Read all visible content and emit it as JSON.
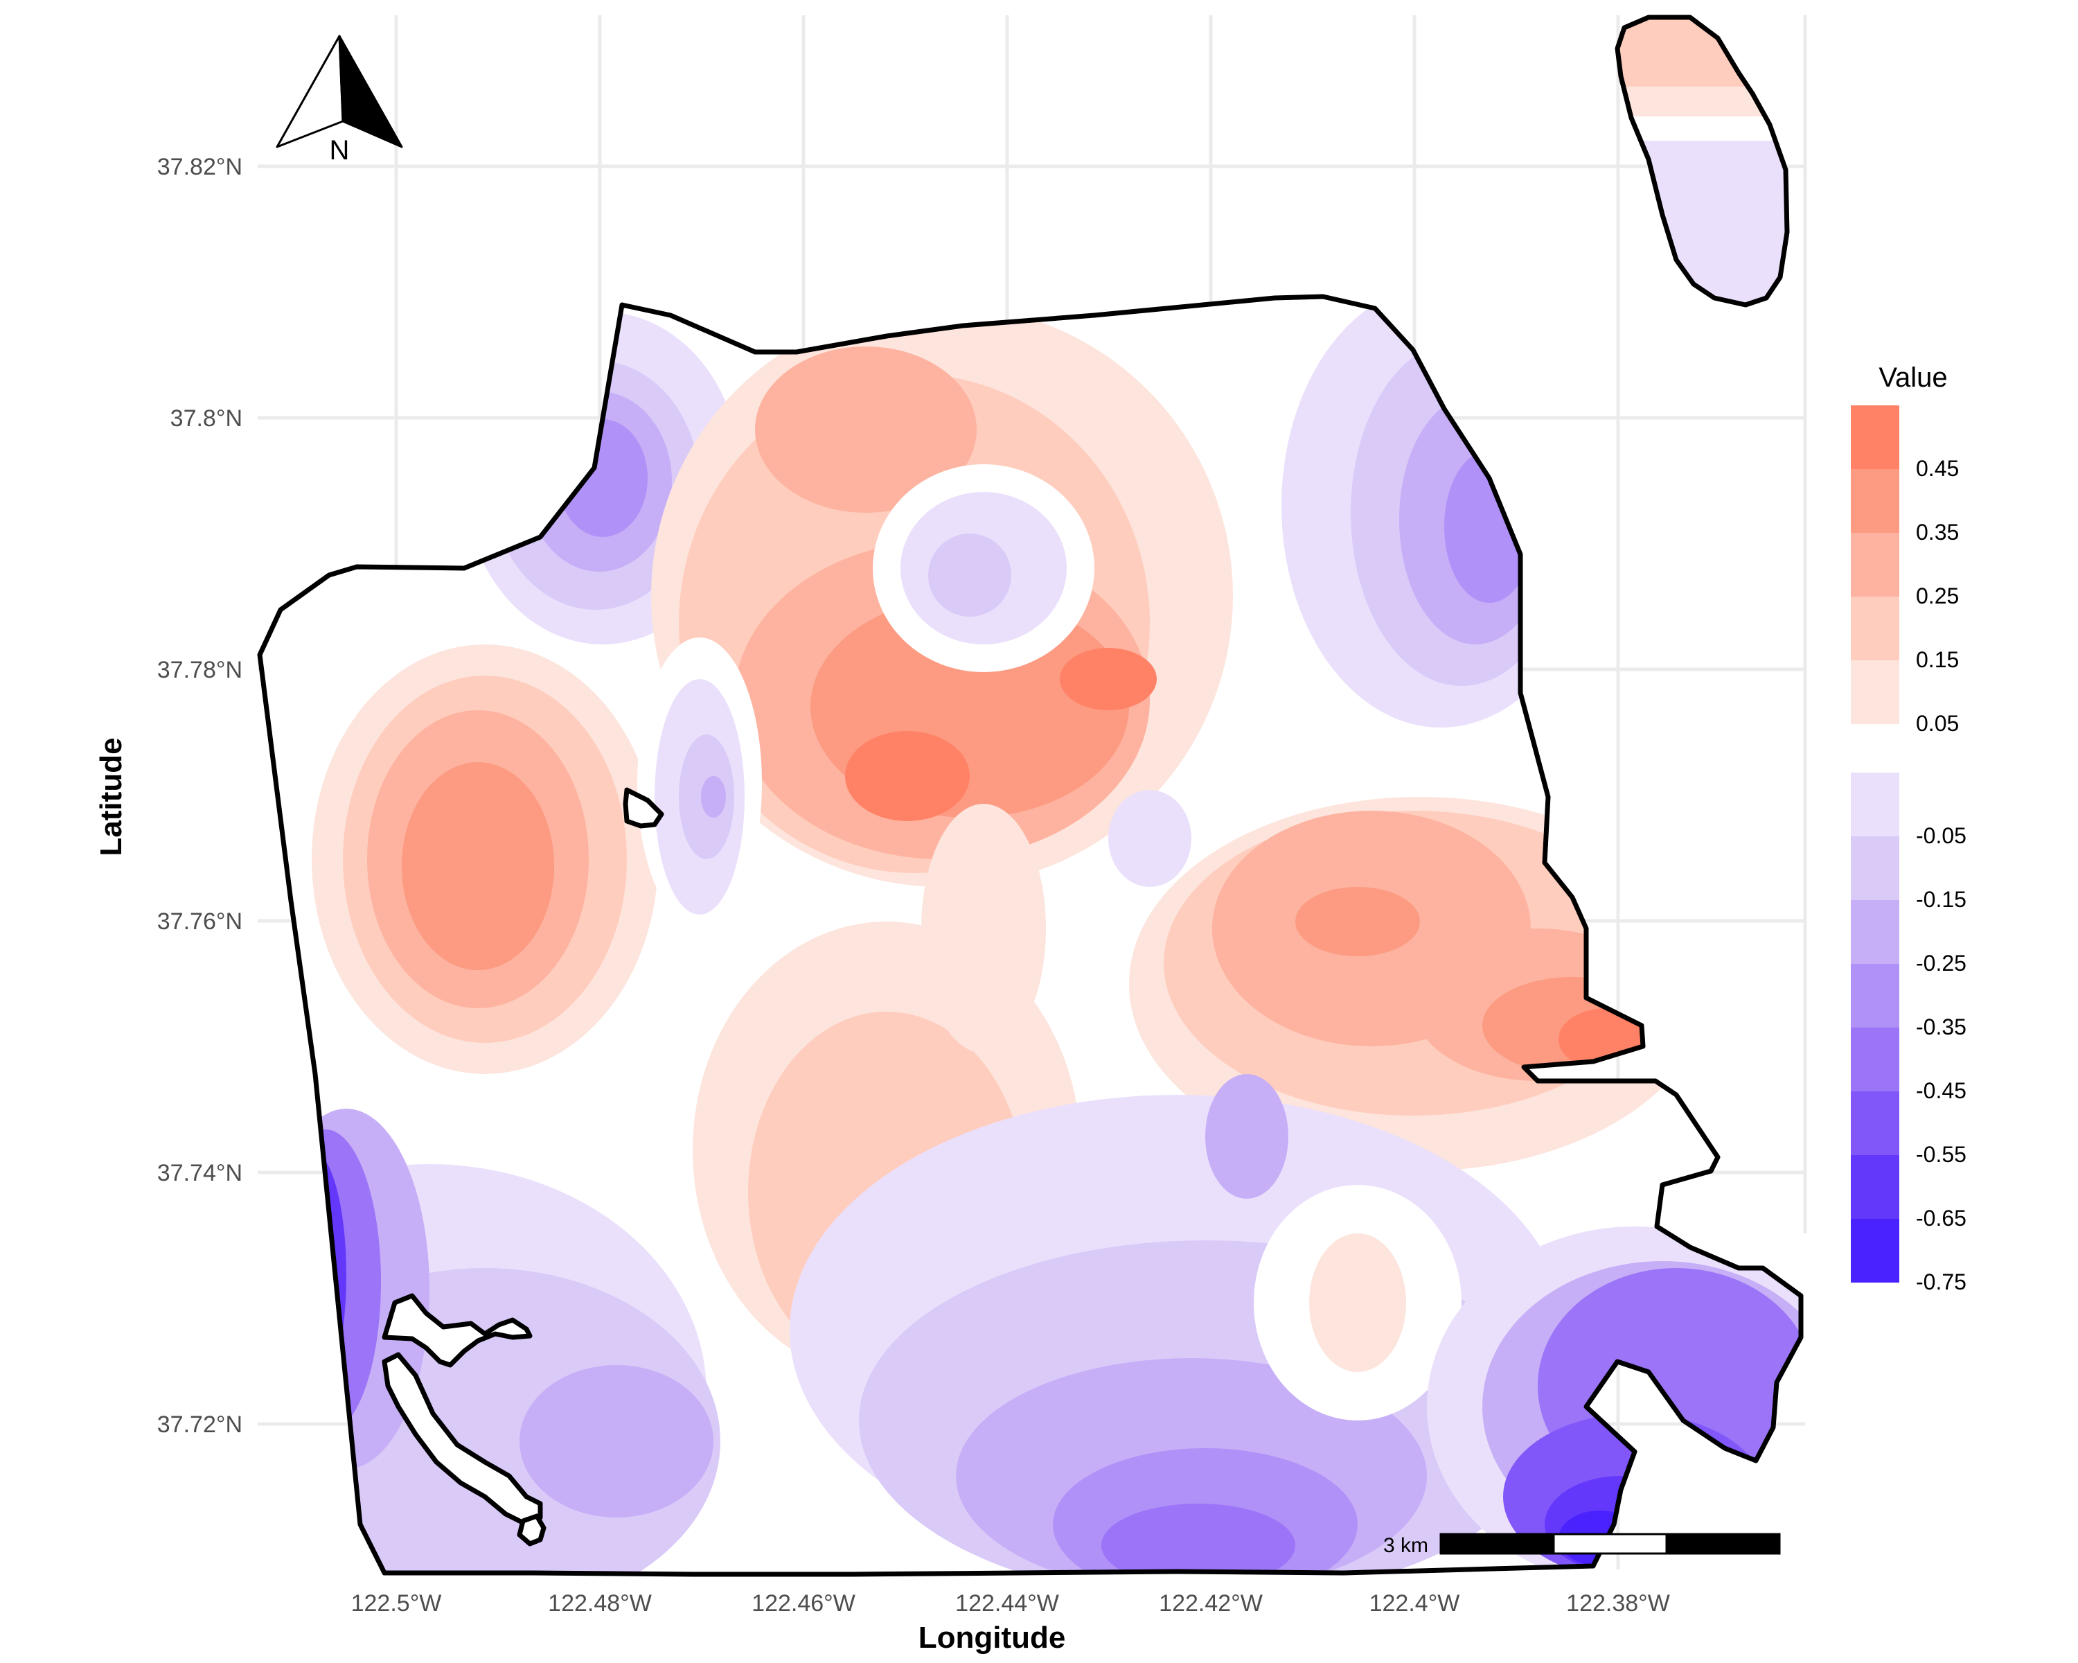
{
  "map": {
    "x_axis_title": "Longitude",
    "y_axis_title": "Latitude",
    "lon_ticks": [
      "122.5°W",
      "122.48°W",
      "122.46°W",
      "122.44°W",
      "122.42°W",
      "122.4°W",
      "122.38°W"
    ],
    "lat_ticks": [
      "37.82°N",
      "37.8°N",
      "37.78°N",
      "37.76°N",
      "37.74°N",
      "37.72°N"
    ],
    "north_arrow_label": "N",
    "scale_bar_label": "3 km",
    "legend": {
      "title": "Value",
      "positive": [
        {
          "label": "0.45",
          "color": "#ff8266"
        },
        {
          "label": "0.35",
          "color": "#fc9a82"
        },
        {
          "label": "0.25",
          "color": "#fdb39f"
        },
        {
          "label": "0.15",
          "color": "#fecdbe"
        },
        {
          "label": "0.05",
          "color": "#fde4dc"
        }
      ],
      "negative": [
        {
          "label": "-0.05",
          "color": "#ebe0fc"
        },
        {
          "label": "-0.15",
          "color": "#dacaf8"
        },
        {
          "label": "-0.25",
          "color": "#c6aff7"
        },
        {
          "label": "-0.35",
          "color": "#b091f7"
        },
        {
          "label": "-0.45",
          "color": "#9b74f8"
        },
        {
          "label": "-0.55",
          "color": "#8157fa"
        },
        {
          "label": "-0.65",
          "color": "#6438fb"
        },
        {
          "label": "-0.75",
          "color": "#4a22fd"
        }
      ]
    }
  }
}
